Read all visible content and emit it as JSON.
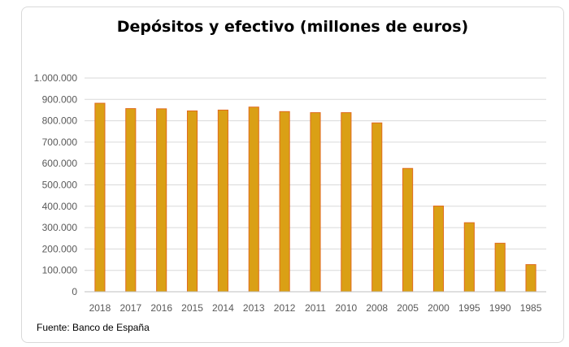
{
  "chart_data": {
    "type": "bar",
    "title": "Depósitos y efectivo (millones de euros)",
    "xlabel": "",
    "ylabel": "",
    "categories": [
      "2018",
      "2017",
      "2016",
      "2015",
      "2014",
      "2013",
      "2012",
      "2011",
      "2010",
      "2008",
      "2005",
      "2000",
      "1995",
      "1990",
      "1985"
    ],
    "values": [
      882000,
      857000,
      856000,
      846000,
      850000,
      864000,
      843000,
      838000,
      838000,
      790000,
      577000,
      401000,
      323000,
      227000,
      127000
    ],
    "ylim": [
      0,
      1000000
    ],
    "yticks": [
      0,
      100000,
      200000,
      300000,
      400000,
      500000,
      600000,
      700000,
      800000,
      900000,
      1000000
    ],
    "ytick_labels": [
      "0",
      "100.000",
      "200.000",
      "300.000",
      "400.000",
      "500.000",
      "600.000",
      "700.000",
      "800.000",
      "900.000",
      "1.000.000"
    ],
    "grid": true,
    "legend": "none",
    "bar_color": "#DAA015",
    "bar_edge_color": "#E06A1E",
    "source": "Fuente: Banco de España"
  }
}
